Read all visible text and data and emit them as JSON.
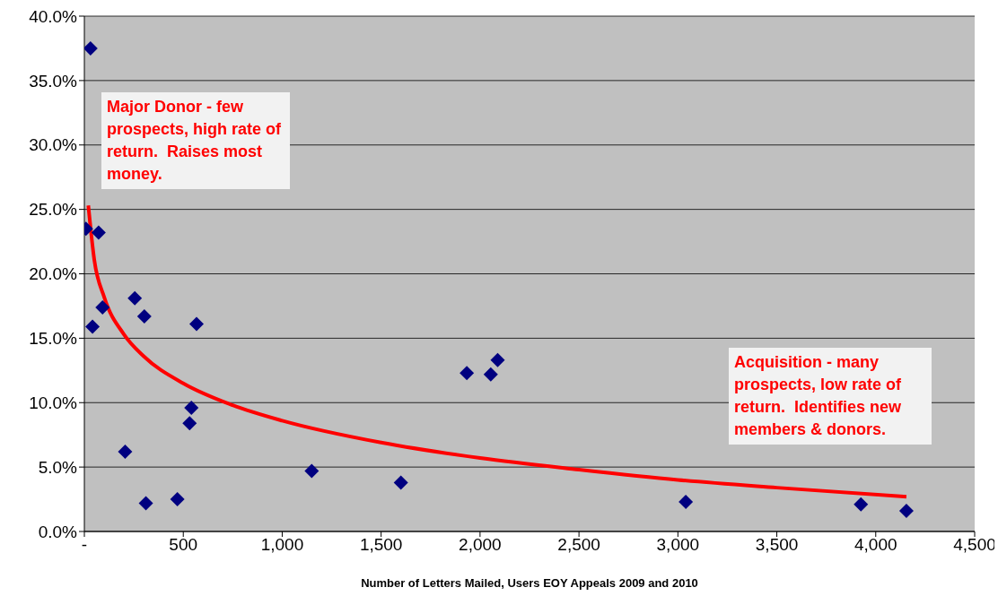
{
  "chart_data": {
    "type": "scatter",
    "xlabel": "Number of Letters Mailed, Users EOY Appeals 2009 and 2010",
    "xlim": [
      0,
      4500
    ],
    "xticks": [
      {
        "value": 0,
        "label": "-"
      },
      500,
      {
        "value": 1000,
        "label": "1,000"
      },
      {
        "value": 1500,
        "label": "1,500"
      },
      {
        "value": 2000,
        "label": "2,000"
      },
      {
        "value": 2500,
        "label": "2,500"
      },
      {
        "value": 3000,
        "label": "3,000"
      },
      {
        "value": 3500,
        "label": "3,500"
      },
      {
        "value": 4000,
        "label": "4,000"
      },
      {
        "value": 4500,
        "label": "4,500"
      }
    ],
    "ylim": [
      0,
      40
    ],
    "yticks": [
      {
        "value": 0,
        "label": "0.0%"
      },
      {
        "value": 5,
        "label": "5.0%"
      },
      {
        "value": 10,
        "label": "10.0%"
      },
      {
        "value": 15,
        "label": "15.0%"
      },
      {
        "value": 20,
        "label": "20.0%"
      },
      {
        "value": 25,
        "label": "25.0%"
      },
      {
        "value": 30,
        "label": "30.0%"
      },
      {
        "value": 35,
        "label": "35.0%"
      },
      {
        "value": 40,
        "label": "40.0%"
      }
    ],
    "grid": "y",
    "legend": false,
    "series": [
      {
        "marker": "diamond",
        "color": "#000080",
        "x": [
          31,
          8,
          72,
          41,
          92,
          255,
          303,
          567,
          541,
          532,
          206,
          311,
          470,
          1149,
          1600,
          1933,
          2054,
          2089,
          3040,
          3925,
          4155
        ],
        "values": [
          37.5,
          23.5,
          23.2,
          15.9,
          17.4,
          18.1,
          16.7,
          16.1,
          9.6,
          8.4,
          6.2,
          2.2,
          2.5,
          4.7,
          3.8,
          12.3,
          12.2,
          13.3,
          2.3,
          2.1,
          1.6
        ]
      },
      {
        "type": "line",
        "color": "#ff0000",
        "x": [
          20,
          50,
          100,
          200,
          300,
          500,
          750,
          1000,
          1500,
          2000,
          2500,
          3000,
          3500,
          4155
        ],
        "values": [
          25.3,
          21.1,
          18.2,
          15.3,
          13.6,
          11.5,
          9.8,
          8.6,
          6.9,
          5.7,
          4.8,
          4.0,
          3.4,
          2.7
        ]
      }
    ],
    "annotations": [
      "Major Donor - few prospects, high rate of return.  Raises most money.",
      "Acquisition - many prospects, low rate of return.  Identifies new members & donors."
    ]
  }
}
